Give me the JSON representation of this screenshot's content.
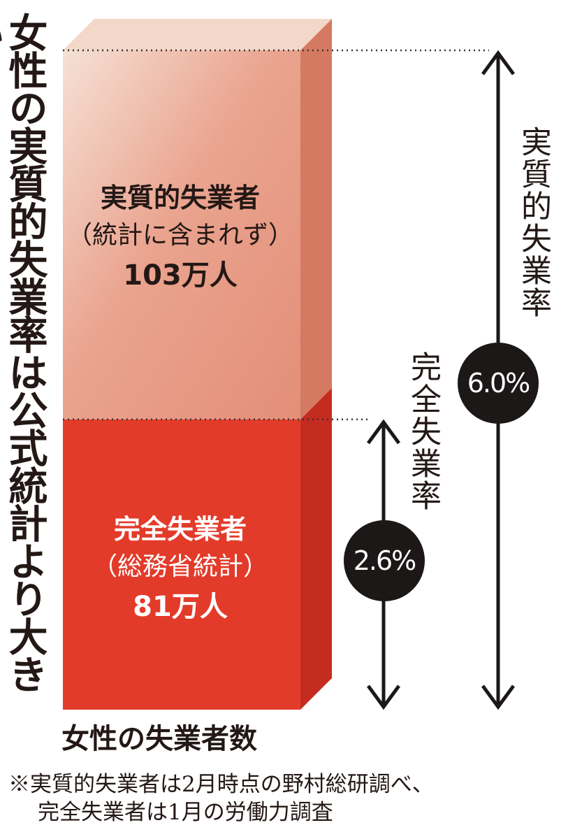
{
  "title": "女性の実質的失業率は公式統計より大きい",
  "chart_data": {
    "type": "bar",
    "stacked": true,
    "xlabel": "女性の失業者数",
    "unit": "万人",
    "segments": [
      {
        "key": "full",
        "name": "完全失業者",
        "sublabel": "（総務省統計）",
        "value": 81,
        "value_label": "81万人",
        "rate_label": "完全失業率",
        "rate_value": "2.6%",
        "color": "#e33b2a"
      },
      {
        "key": "hidden",
        "name": "実質的失業者",
        "sublabel": "（統計に含まれず）",
        "value": 103,
        "value_label": "103万人",
        "rate_label": "実質的失業率",
        "rate_value": "6.0%",
        "color": "#e8907a"
      }
    ]
  },
  "note": {
    "line1": "※実質的失業者は2月時点の野村総研調べ、",
    "line2": "完全失業者は1月の労働力調査"
  }
}
